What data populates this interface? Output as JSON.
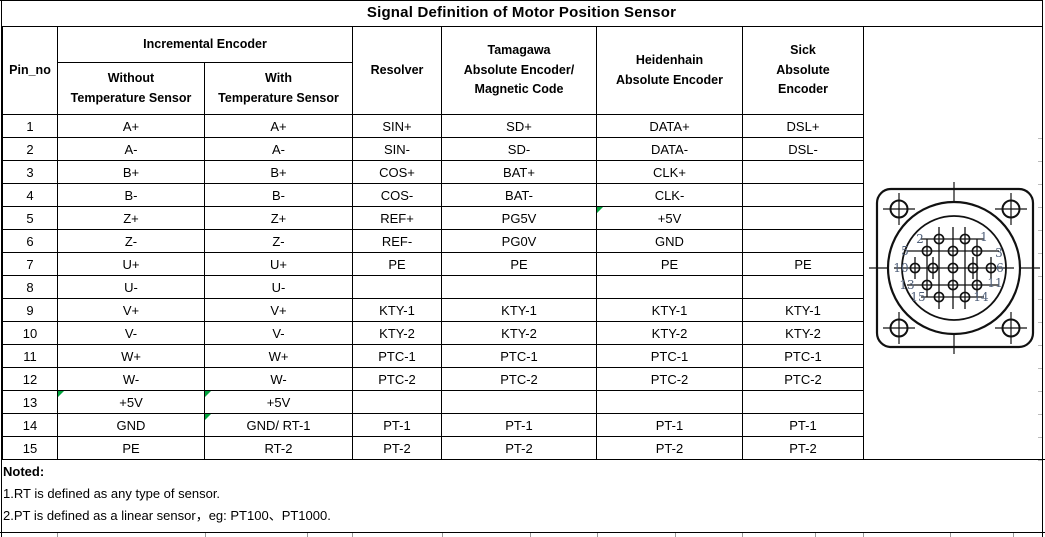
{
  "title": "Signal Definition of Motor Position Sensor",
  "colors": {
    "border": "#000000",
    "comment_flag_green": "#00A33C",
    "connector_pin_label": "#50607A"
  },
  "table": {
    "header": {
      "pin_no": "Pin_no",
      "incremental": "Incremental Encoder",
      "without": "Without\nTemperature Sensor",
      "with": "With\nTemperature Sensor",
      "resolver": "Resolver",
      "tamagawa": "Tamagawa\nAbsolute Encoder/\nMagnetic Code",
      "heidenhain": "Heidenhain\nAbsolute Encoder",
      "sick": "Sick\nAbsolute\nEncoder"
    },
    "column_order": [
      "without_temperature_sensor",
      "with_temperature_sensor",
      "resolver",
      "tamagawa",
      "heidenhain",
      "sick"
    ],
    "rows": [
      {
        "pin": "1",
        "cells": [
          "A+",
          "A+",
          "SIN+",
          "SD+",
          "DATA+",
          "DSL+"
        ],
        "flags": []
      },
      {
        "pin": "2",
        "cells": [
          "A-",
          "A-",
          "SIN-",
          "SD-",
          "DATA-",
          "DSL-"
        ],
        "flags": []
      },
      {
        "pin": "3",
        "cells": [
          "B+",
          "B+",
          "COS+",
          "BAT+",
          "CLK+",
          ""
        ],
        "flags": []
      },
      {
        "pin": "4",
        "cells": [
          "B-",
          "B-",
          "COS-",
          "BAT-",
          "CLK-",
          ""
        ],
        "flags": []
      },
      {
        "pin": "5",
        "cells": [
          "Z+",
          "Z+",
          "REF+",
          "PG5V",
          "+5V",
          ""
        ],
        "flags": [
          4
        ]
      },
      {
        "pin": "6",
        "cells": [
          "Z-",
          "Z-",
          "REF-",
          "PG0V",
          "GND",
          ""
        ],
        "flags": []
      },
      {
        "pin": "7",
        "cells": [
          "U+",
          "U+",
          "PE",
          "PE",
          "PE",
          "PE"
        ],
        "flags": []
      },
      {
        "pin": "8",
        "cells": [
          "U-",
          "U-",
          "",
          "",
          "",
          ""
        ],
        "flags": []
      },
      {
        "pin": "9",
        "cells": [
          "V+",
          "V+",
          "KTY-1",
          "KTY-1",
          "KTY-1",
          "KTY-1"
        ],
        "flags": []
      },
      {
        "pin": "10",
        "cells": [
          "V-",
          "V-",
          "KTY-2",
          "KTY-2",
          "KTY-2",
          "KTY-2"
        ],
        "flags": []
      },
      {
        "pin": "11",
        "cells": [
          "W+",
          "W+",
          "PTC-1",
          "PTC-1",
          "PTC-1",
          "PTC-1"
        ],
        "flags": []
      },
      {
        "pin": "12",
        "cells": [
          "W-",
          "W-",
          "PTC-2",
          "PTC-2",
          "PTC-2",
          "PTC-2"
        ],
        "flags": []
      },
      {
        "pin": "13",
        "cells": [
          "+5V",
          "+5V",
          "",
          "",
          "",
          ""
        ],
        "flags": [
          0,
          1
        ]
      },
      {
        "pin": "14",
        "cells": [
          "GND",
          "GND/ RT-1",
          "PT-1",
          "PT-1",
          "PT-1",
          "PT-1"
        ],
        "flags": [
          1
        ]
      },
      {
        "pin": "15",
        "cells": [
          "PE",
          "RT-2",
          "PT-2",
          "PT-2",
          "PT-2",
          "PT-2"
        ],
        "flags": []
      }
    ]
  },
  "notes": {
    "heading": "Noted:",
    "items": [
      "1.RT is defined as any type of sensor.",
      "2.PT is defined as a linear sensor，eg: PT100、PT1000."
    ]
  },
  "connector": {
    "pin_rows": [
      [
        "2",
        "1"
      ],
      [
        "5",
        "3"
      ],
      [
        "10",
        "6"
      ],
      [
        "13",
        "11"
      ],
      [
        "15",
        "14"
      ]
    ]
  }
}
